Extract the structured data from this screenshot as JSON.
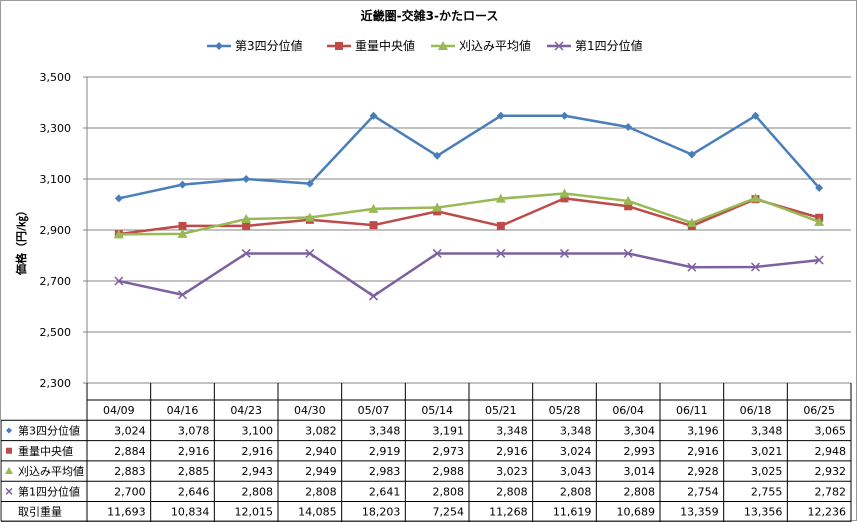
{
  "chart_data": {
    "type": "line",
    "title": "近畿圏-交雑3-かたロース",
    "ylabel": "価格（円/㎏）",
    "xlabel": "",
    "ylim": [
      2300,
      3500
    ],
    "yticks": [
      "2,300",
      "2,500",
      "2,700",
      "2,900",
      "3,100",
      "3,300",
      "3,500"
    ],
    "ytick_values": [
      2300,
      2500,
      2700,
      2900,
      3100,
      3300,
      3500
    ],
    "grid": true,
    "legend_position": "top",
    "categories": [
      "04/09",
      "04/16",
      "04/23",
      "04/30",
      "05/07",
      "05/14",
      "05/21",
      "05/28",
      "06/04",
      "06/11",
      "06/18",
      "06/25"
    ],
    "series": [
      {
        "name": "第3四分位値",
        "color": "#4a7ebb",
        "marker": "diamond",
        "values": [
          3024,
          3078,
          3100,
          3082,
          3348,
          3191,
          3348,
          3348,
          3304,
          3196,
          3348,
          3065
        ],
        "labels": [
          "3,024",
          "3,078",
          "3,100",
          "3,082",
          "3,348",
          "3,191",
          "3,348",
          "3,348",
          "3,304",
          "3,196",
          "3,348",
          "3,065"
        ]
      },
      {
        "name": "重量中央値",
        "color": "#be4b48",
        "marker": "square",
        "values": [
          2884,
          2916,
          2916,
          2940,
          2919,
          2973,
          2916,
          3024,
          2993,
          2916,
          3021,
          2948
        ],
        "labels": [
          "2,884",
          "2,916",
          "2,916",
          "2,940",
          "2,919",
          "2,973",
          "2,916",
          "3,024",
          "2,993",
          "2,916",
          "3,021",
          "2,948"
        ]
      },
      {
        "name": "刈込み平均値",
        "color": "#98b954",
        "marker": "triangle",
        "values": [
          2883,
          2885,
          2943,
          2949,
          2983,
          2988,
          3023,
          3043,
          3014,
          2928,
          3025,
          2932
        ],
        "labels": [
          "2,883",
          "2,885",
          "2,943",
          "2,949",
          "2,983",
          "2,988",
          "3,023",
          "3,043",
          "3,014",
          "2,928",
          "3,025",
          "2,932"
        ]
      },
      {
        "name": "第1四分位値",
        "color": "#7d60a0",
        "marker": "x",
        "values": [
          2700,
          2646,
          2808,
          2808,
          2641,
          2808,
          2808,
          2808,
          2808,
          2754,
          2755,
          2782
        ],
        "labels": [
          "2,700",
          "2,646",
          "2,808",
          "2,808",
          "2,641",
          "2,808",
          "2,808",
          "2,808",
          "2,808",
          "2,754",
          "2,755",
          "2,782"
        ]
      }
    ],
    "table": {
      "extra_row": {
        "name": "取引重量",
        "labels": [
          "11,693",
          "10,834",
          "12,015",
          "14,085",
          "18,203",
          "7,254",
          "11,268",
          "11,619",
          "10,689",
          "13,359",
          "13,356",
          "12,236"
        ]
      }
    }
  }
}
